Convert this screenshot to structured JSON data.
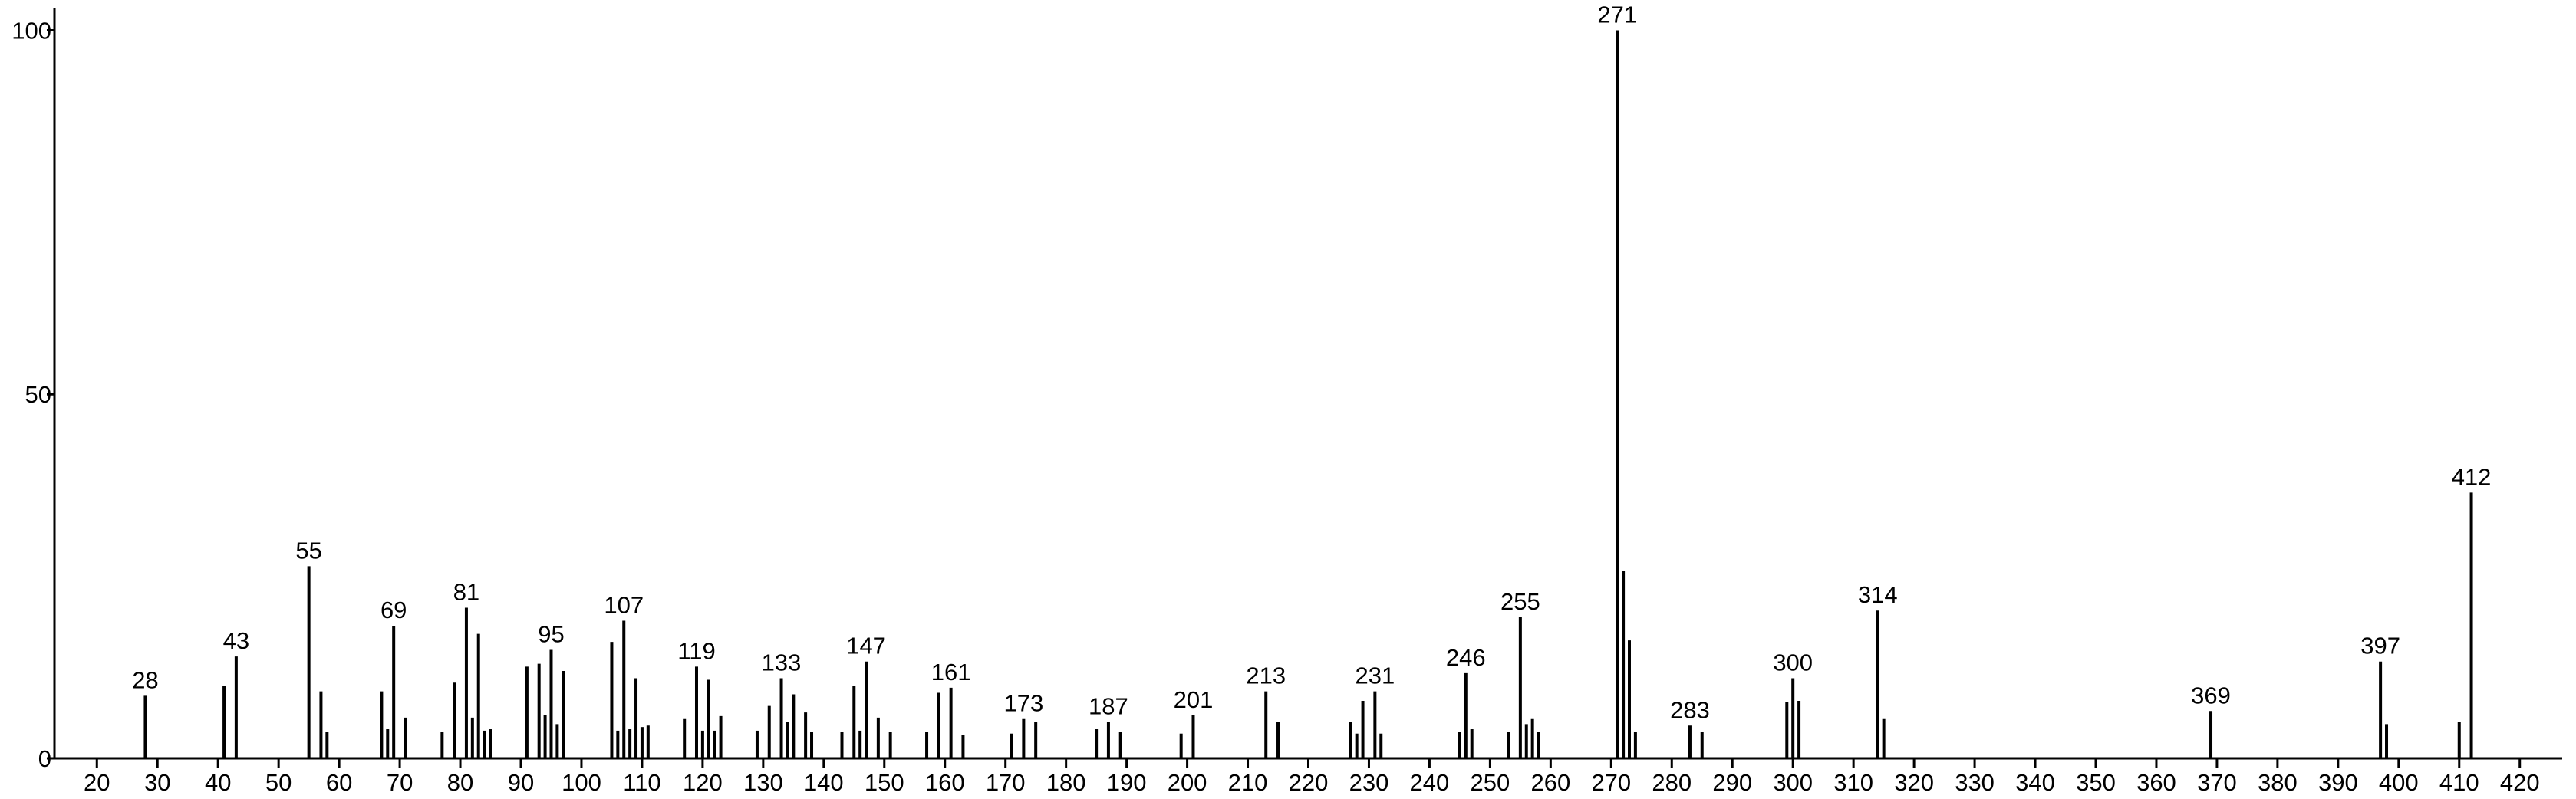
{
  "chart_data": {
    "type": "stem",
    "color": "#000000",
    "x": [
      28,
      41,
      43,
      55,
      57,
      58,
      67,
      68,
      69,
      71,
      77,
      79,
      81,
      82,
      83,
      84,
      85,
      91,
      93,
      94,
      95,
      96,
      97,
      105,
      106,
      107,
      108,
      109,
      110,
      111,
      117,
      119,
      120,
      121,
      122,
      123,
      129,
      131,
      133,
      134,
      135,
      137,
      138,
      143,
      145,
      146,
      147,
      149,
      151,
      157,
      159,
      161,
      163,
      171,
      173,
      175,
      185,
      187,
      189,
      199,
      201,
      213,
      215,
      227,
      228,
      229,
      231,
      232,
      245,
      246,
      247,
      253,
      255,
      256,
      257,
      258,
      271,
      272,
      273,
      274,
      283,
      285,
      299,
      300,
      301,
      314,
      315,
      369,
      397,
      398,
      410,
      412
    ],
    "values": [
      8.6,
      10,
      14,
      26.4,
      9.2,
      3.6,
      9.2,
      4,
      18.2,
      5.6,
      3.6,
      10.4,
      20.7,
      5.6,
      17.1,
      3.8,
      4,
      12.6,
      13,
      6,
      14.9,
      4.7,
      12,
      16,
      3.8,
      18.9,
      4,
      11,
      4.3,
      4.5,
      5.4,
      12.6,
      3.8,
      10.8,
      3.8,
      5.8,
      3.8,
      7.2,
      11,
      5,
      8.8,
      6.3,
      3.6,
      3.6,
      10,
      3.8,
      13.3,
      5.6,
      3.6,
      3.6,
      9,
      9.7,
      3.2,
      3.4,
      5.4,
      5,
      4,
      5,
      3.6,
      3.4,
      5.9,
      9.2,
      5,
      5,
      3.4,
      7.9,
      9.2,
      3.4,
      3.6,
      11.7,
      4,
      3.6,
      19.4,
      4.7,
      5.4,
      3.6,
      100,
      25.7,
      16.2,
      3.6,
      4.5,
      3.6,
      7.7,
      11,
      7.9,
      20.3,
      5.4,
      6.5,
      13.3,
      4.7,
      5,
      36.5
    ],
    "annotations": [
      28,
      43,
      55,
      69,
      81,
      95,
      107,
      119,
      133,
      147,
      161,
      173,
      187,
      201,
      213,
      231,
      246,
      255,
      271,
      283,
      300,
      314,
      369,
      397,
      412
    ],
    "xlim": [
      13,
      427
    ],
    "ylim": [
      0,
      103
    ],
    "xticks": [
      20,
      30,
      40,
      50,
      60,
      70,
      80,
      90,
      100,
      110,
      120,
      130,
      140,
      150,
      160,
      170,
      180,
      190,
      200,
      210,
      220,
      230,
      240,
      250,
      260,
      270,
      280,
      290,
      300,
      310,
      320,
      330,
      340,
      350,
      360,
      370,
      380,
      390,
      400,
      410,
      420
    ],
    "yticks": [
      0,
      50,
      100
    ]
  }
}
